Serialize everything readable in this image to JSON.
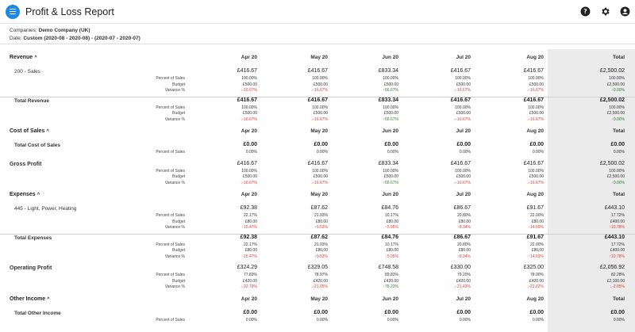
{
  "app": {
    "title": "Profit & Loss Report"
  },
  "header_icons": [
    "help-icon",
    "gear-icon",
    "account-icon"
  ],
  "meta": {
    "companies_label": "Companies:",
    "companies_value": "Demo Company (UK)",
    "date_label": "Date:",
    "date_value": "Custom (2020-08 - 2020-08) - (2020-07 - 2020-07)"
  },
  "columns": [
    "Apr 20",
    "May 20",
    "Jun 20",
    "Jul 20",
    "Aug 20",
    "Total"
  ],
  "sub_labels": {
    "percent": "Percent of Sales",
    "budget": "Budget",
    "variance": "Variance %"
  },
  "sections": [
    {
      "id": "revenue",
      "name": "Revenue",
      "lines": [
        {
          "label": "200 - Sales",
          "bold": false,
          "values": [
            "£416.67",
            "£416.67",
            "£833.34",
            "£416.67",
            "£416.67",
            "£2,500.02"
          ],
          "percent": [
            "100.00%",
            "100.00%",
            "100.00%",
            "100.00%",
            "100.00%",
            "100.00%"
          ],
          "budget": [
            "£500.00",
            "£500.00",
            "£500.00",
            "£500.00",
            "£500.00",
            "£2,500.00"
          ],
          "variance": [
            "↓-16.67%",
            "↓-16.67%",
            "↑66.67%",
            "↓-16.67%",
            "↓-16.67%",
            "↑0.00%"
          ],
          "variance_dir": [
            "neg",
            "neg",
            "pos",
            "neg",
            "neg",
            "pos"
          ]
        }
      ],
      "total": {
        "label": "Total Revenue",
        "values": [
          "£416.67",
          "£416.67",
          "£833.34",
          "£416.67",
          "£416.67",
          "£2,500.02"
        ],
        "percent": [
          "100.00%",
          "100.00%",
          "100.00%",
          "100.00%",
          "100.00%",
          "100.00%"
        ],
        "budget": [
          "£500.00",
          "£500.00",
          "£500.00",
          "£500.00",
          "£500.00",
          "£2,500.00"
        ],
        "variance": [
          "↓-16.67%",
          "↓-16.67%",
          "↑66.67%",
          "↓-16.67%",
          "↓-16.67%",
          "↑0.00%"
        ],
        "variance_dir": [
          "neg",
          "neg",
          "pos",
          "neg",
          "neg",
          "pos"
        ]
      }
    },
    {
      "id": "cost_of_sales",
      "name": "Cost of Sales",
      "lines": [],
      "total": {
        "label": "Total Cost of Sales",
        "values": [
          "£0.00",
          "£0.00",
          "£0.00",
          "£0.00",
          "£0.00",
          "£0.00"
        ],
        "percent": [
          "0.00%",
          "0.00%",
          "0.00%",
          "0.00%",
          "0.00%",
          "0.00%"
        ]
      }
    },
    {
      "id": "gross_profit",
      "name": "Gross Profit",
      "standalone": true,
      "values": [
        "£416.67",
        "£416.67",
        "£833.34",
        "£416.67",
        "£416.67",
        "£2,500.02"
      ],
      "percent": [
        "100.00%",
        "100.00%",
        "100.00%",
        "100.00%",
        "100.00%",
        "100.00%"
      ],
      "budget": [
        "£500.00",
        "£500.00",
        "£500.00",
        "£500.00",
        "£500.00",
        "£2,500.00"
      ],
      "variance": [
        "↓-16.67%",
        "↓-16.67%",
        "↑66.67%",
        "↓-16.67%",
        "↓-16.67%",
        "↑0.00%"
      ],
      "variance_dir": [
        "neg",
        "neg",
        "pos",
        "neg",
        "neg",
        "pos"
      ]
    },
    {
      "id": "expenses",
      "name": "Expenses",
      "lines": [
        {
          "label": "445 - Light, Power, Heating",
          "bold": false,
          "values": [
            "£92.38",
            "£87.62",
            "£84.76",
            "£86.67",
            "£91.67",
            "£443.10"
          ],
          "percent": [
            "22.17%",
            "21.03%",
            "10.17%",
            "20.80%",
            "22.00%",
            "17.72%"
          ],
          "budget": [
            "£80.00",
            "£80.00",
            "£80.00",
            "£80.00",
            "£80.00",
            "£400.00"
          ],
          "variance": [
            "↑15.47%",
            "↑9.53%",
            "↑5.95%",
            "↑8.34%",
            "↑14.59%",
            "↑10.78%"
          ],
          "variance_dir": [
            "neg",
            "neg",
            "neg",
            "neg",
            "neg",
            "neg"
          ]
        }
      ],
      "total": {
        "label": "Total Expenses",
        "values": [
          "£92.38",
          "£87.62",
          "£84.76",
          "£86.67",
          "£91.67",
          "£443.10"
        ],
        "percent": [
          "22.17%",
          "21.03%",
          "10.17%",
          "20.80%",
          "22.00%",
          "17.72%"
        ],
        "budget": [
          "£80.00",
          "£80.00",
          "£80.00",
          "£80.00",
          "£80.00",
          "£400.00"
        ],
        "variance": [
          "↑15.47%",
          "↑9.53%",
          "↑5.95%",
          "↑8.34%",
          "↑14.59%",
          "↑10.78%"
        ],
        "variance_dir": [
          "neg",
          "neg",
          "neg",
          "neg",
          "neg",
          "neg"
        ]
      }
    },
    {
      "id": "operating_profit",
      "name": "Operating Profit",
      "standalone": true,
      "values": [
        "£324.29",
        "£329.05",
        "£748.58",
        "£330.00",
        "£325.00",
        "£2,056.92"
      ],
      "percent": [
        "77.83%",
        "78.97%",
        "89.83%",
        "79.20%",
        "78.00%",
        "82.28%"
      ],
      "budget": [
        "£420.00",
        "£420.00",
        "£420.00",
        "£420.00",
        "£420.00",
        "£2,100.00"
      ],
      "variance": [
        "↓-22.79%",
        "↓-21.65%",
        "↑78.23%",
        "↓-21.43%",
        "↓-22.62%",
        "↓-2.05%"
      ],
      "variance_dir": [
        "neg",
        "neg",
        "pos",
        "neg",
        "neg",
        "neg"
      ]
    },
    {
      "id": "other_income",
      "name": "Other Income",
      "lines": [],
      "total": {
        "label": "Total Other Income",
        "values": [
          "£0.00",
          "£0.00",
          "£0.00",
          "£0.00",
          "£0.00",
          "£0.00"
        ],
        "percent": [
          "0.00%",
          "0.00%",
          "0.00%",
          "0.00%",
          "0.00%",
          "0.00%"
        ]
      }
    }
  ]
}
